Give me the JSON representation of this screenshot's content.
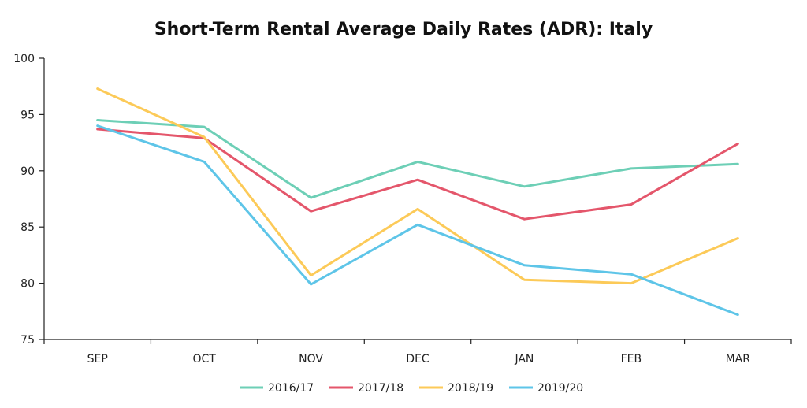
{
  "chart_data": {
    "type": "line",
    "title": "Short-Term Rental Average Daily Rates (ADR): Italy",
    "xlabel": "",
    "ylabel": "",
    "categories": [
      "SEP",
      "OCT",
      "NOV",
      "DEC",
      "JAN",
      "FEB",
      "MAR"
    ],
    "ylim": [
      75,
      100
    ],
    "yticks": [
      75,
      80,
      85,
      90,
      95,
      100
    ],
    "grid": false,
    "legend_position": "bottom",
    "series": [
      {
        "name": "2016/17",
        "color": "#6dcfb6",
        "values": [
          94.5,
          93.9,
          87.6,
          90.8,
          88.6,
          90.2,
          90.6
        ]
      },
      {
        "name": "2017/18",
        "color": "#e4566b",
        "values": [
          93.7,
          92.9,
          86.4,
          89.2,
          85.7,
          87.0,
          92.4
        ]
      },
      {
        "name": "2018/19",
        "color": "#fcca58",
        "values": [
          97.3,
          93.0,
          80.7,
          86.6,
          80.3,
          80.0,
          84.0
        ]
      },
      {
        "name": "2019/20",
        "color": "#5ec5e8",
        "values": [
          94.0,
          90.8,
          79.9,
          85.2,
          81.6,
          80.8,
          77.2
        ]
      }
    ]
  }
}
